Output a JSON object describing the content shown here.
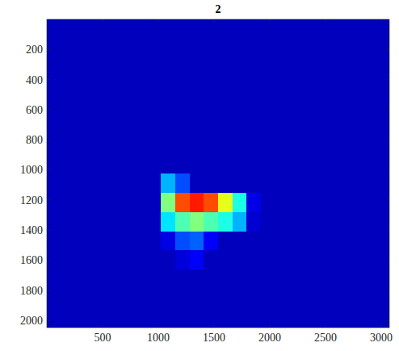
{
  "chart_data": {
    "type": "heatmap",
    "title": "2",
    "x": [
      64,
      192,
      320,
      448,
      576,
      704,
      832,
      960,
      1088,
      1216,
      1344,
      1472,
      1600,
      1728,
      1856,
      1984,
      2112,
      2240,
      2368,
      2496,
      2624,
      2752,
      2880,
      3008
    ],
    "y": [
      64,
      192,
      320,
      448,
      576,
      704,
      832,
      960,
      1088,
      1216,
      1344,
      1472,
      1600,
      1728,
      1856,
      1984
    ],
    "xlim": [
      0.5,
      3072.5
    ],
    "ylim": [
      0.5,
      2048.5
    ],
    "xticks": [
      500,
      1000,
      1500,
      2000,
      2500,
      3000
    ],
    "yticks": [
      200,
      400,
      600,
      800,
      1000,
      1200,
      1400,
      1600,
      1800,
      2000
    ],
    "zlim": [
      0,
      1
    ],
    "cells": [
      [
        0.06,
        0.06,
        0.06,
        0.06,
        0.06,
        0.06,
        0.06,
        0.06,
        0.06,
        0.06,
        0.06,
        0.06,
        0.06,
        0.06,
        0.06,
        0.06,
        0.06,
        0.06,
        0.06,
        0.06,
        0.06,
        0.06,
        0.06,
        0.06
      ],
      [
        0.06,
        0.06,
        0.06,
        0.06,
        0.06,
        0.06,
        0.06,
        0.06,
        0.06,
        0.06,
        0.06,
        0.06,
        0.06,
        0.06,
        0.06,
        0.06,
        0.06,
        0.06,
        0.06,
        0.06,
        0.06,
        0.06,
        0.06,
        0.06
      ],
      [
        0.06,
        0.06,
        0.06,
        0.06,
        0.06,
        0.06,
        0.06,
        0.06,
        0.06,
        0.06,
        0.06,
        0.06,
        0.06,
        0.06,
        0.06,
        0.06,
        0.06,
        0.06,
        0.06,
        0.06,
        0.06,
        0.06,
        0.06,
        0.06
      ],
      [
        0.06,
        0.06,
        0.06,
        0.06,
        0.06,
        0.06,
        0.06,
        0.06,
        0.06,
        0.06,
        0.06,
        0.06,
        0.06,
        0.06,
        0.06,
        0.06,
        0.06,
        0.06,
        0.06,
        0.06,
        0.06,
        0.06,
        0.06,
        0.06
      ],
      [
        0.06,
        0.06,
        0.06,
        0.06,
        0.06,
        0.06,
        0.06,
        0.06,
        0.06,
        0.06,
        0.06,
        0.06,
        0.06,
        0.06,
        0.06,
        0.06,
        0.06,
        0.06,
        0.06,
        0.06,
        0.06,
        0.06,
        0.06,
        0.06
      ],
      [
        0.06,
        0.06,
        0.06,
        0.06,
        0.06,
        0.06,
        0.06,
        0.06,
        0.06,
        0.06,
        0.06,
        0.06,
        0.06,
        0.06,
        0.06,
        0.06,
        0.06,
        0.06,
        0.06,
        0.06,
        0.06,
        0.06,
        0.06,
        0.06
      ],
      [
        0.06,
        0.06,
        0.06,
        0.06,
        0.06,
        0.06,
        0.06,
        0.06,
        0.06,
        0.06,
        0.06,
        0.06,
        0.06,
        0.06,
        0.06,
        0.06,
        0.06,
        0.06,
        0.06,
        0.06,
        0.06,
        0.06,
        0.06,
        0.06
      ],
      [
        0.06,
        0.06,
        0.06,
        0.06,
        0.06,
        0.06,
        0.06,
        0.06,
        0.06,
        0.06,
        0.06,
        0.06,
        0.06,
        0.06,
        0.06,
        0.06,
        0.06,
        0.06,
        0.06,
        0.06,
        0.06,
        0.06,
        0.06,
        0.06
      ],
      [
        0.06,
        0.06,
        0.06,
        0.06,
        0.06,
        0.06,
        0.06,
        0.06,
        0.3,
        0.2,
        0.06,
        0.06,
        0.06,
        0.06,
        0.06,
        0.06,
        0.06,
        0.06,
        0.06,
        0.06,
        0.06,
        0.06,
        0.06,
        0.06
      ],
      [
        0.06,
        0.06,
        0.06,
        0.06,
        0.06,
        0.06,
        0.06,
        0.06,
        0.5,
        0.8,
        0.85,
        0.8,
        0.6,
        0.4,
        0.1,
        0.06,
        0.06,
        0.06,
        0.06,
        0.06,
        0.06,
        0.06,
        0.06,
        0.06
      ],
      [
        0.06,
        0.06,
        0.06,
        0.06,
        0.06,
        0.06,
        0.06,
        0.06,
        0.35,
        0.45,
        0.5,
        0.45,
        0.4,
        0.3,
        0.08,
        0.06,
        0.06,
        0.06,
        0.06,
        0.06,
        0.06,
        0.06,
        0.06,
        0.06
      ],
      [
        0.06,
        0.06,
        0.06,
        0.06,
        0.06,
        0.06,
        0.06,
        0.06,
        0.1,
        0.2,
        0.22,
        0.12,
        0.06,
        0.06,
        0.06,
        0.06,
        0.06,
        0.06,
        0.06,
        0.06,
        0.06,
        0.06,
        0.06,
        0.06
      ],
      [
        0.06,
        0.06,
        0.06,
        0.06,
        0.06,
        0.06,
        0.06,
        0.06,
        0.06,
        0.09,
        0.12,
        0.06,
        0.06,
        0.06,
        0.06,
        0.06,
        0.06,
        0.06,
        0.06,
        0.06,
        0.06,
        0.06,
        0.06,
        0.06
      ],
      [
        0.06,
        0.06,
        0.06,
        0.06,
        0.06,
        0.06,
        0.06,
        0.06,
        0.06,
        0.06,
        0.06,
        0.06,
        0.06,
        0.06,
        0.06,
        0.06,
        0.06,
        0.06,
        0.06,
        0.06,
        0.06,
        0.06,
        0.06,
        0.06
      ],
      [
        0.06,
        0.06,
        0.06,
        0.06,
        0.06,
        0.06,
        0.06,
        0.06,
        0.06,
        0.06,
        0.06,
        0.06,
        0.06,
        0.06,
        0.06,
        0.06,
        0.06,
        0.06,
        0.06,
        0.06,
        0.06,
        0.06,
        0.06,
        0.06
      ],
      [
        0.06,
        0.06,
        0.06,
        0.06,
        0.06,
        0.06,
        0.06,
        0.06,
        0.06,
        0.06,
        0.06,
        0.06,
        0.06,
        0.06,
        0.06,
        0.06,
        0.06,
        0.06,
        0.06,
        0.06,
        0.06,
        0.06,
        0.06,
        0.06
      ]
    ]
  }
}
